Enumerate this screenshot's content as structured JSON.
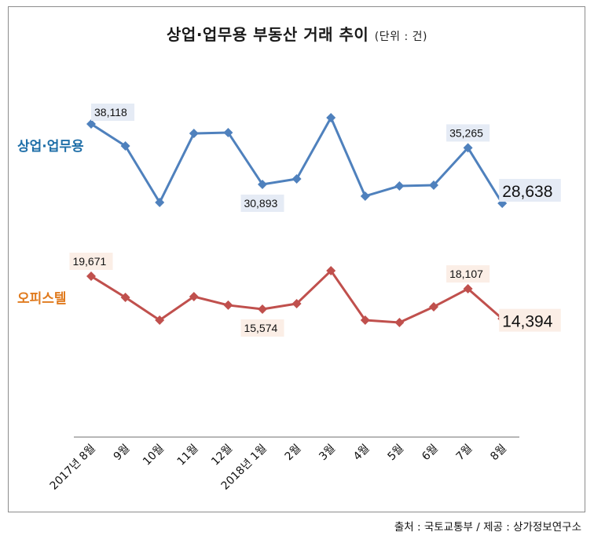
{
  "chart_data": {
    "type": "line",
    "title": "상업·업무용 부동산 거래 추이",
    "unit_label": "(단위 : 건)",
    "categories": [
      "2017년 8월",
      "9월",
      "10월",
      "11월",
      "12월",
      "2018년 1월",
      "2월",
      "3월",
      "4월",
      "5월",
      "6월",
      "7월",
      "8월"
    ],
    "series": [
      {
        "name": "상업·업무용",
        "color": "#4f81bd",
        "label_color": "#1f6fa8",
        "label_bg": "#e5ebf5",
        "values": [
          38118,
          35490,
          28740,
          36990,
          37090,
          30893,
          31550,
          38870,
          29490,
          30710,
          30800,
          35265,
          28638
        ],
        "data_labels": [
          {
            "index": 0,
            "text": "38,118",
            "pos": "above-right"
          },
          {
            "index": 5,
            "text": "30,893",
            "pos": "below"
          },
          {
            "index": 11,
            "text": "35,265",
            "pos": "above"
          },
          {
            "index": 12,
            "text": "28,638",
            "pos": "right",
            "emphasis": true
          }
        ],
        "y_range": [
          26000,
          40000
        ]
      },
      {
        "name": "오피스텔",
        "color": "#c0504d",
        "label_color": "#e07b1f",
        "label_bg": "#fbeee6",
        "values": [
          19671,
          17040,
          14210,
          17140,
          16070,
          15574,
          16260,
          20350,
          14210,
          13920,
          15870,
          18107,
          14394
        ],
        "data_labels": [
          {
            "index": 0,
            "text": "19,671",
            "pos": "above"
          },
          {
            "index": 5,
            "text": "15,574",
            "pos": "below"
          },
          {
            "index": 11,
            "text": "18,107",
            "pos": "above"
          },
          {
            "index": 12,
            "text": "14,394",
            "pos": "right",
            "emphasis": true
          }
        ],
        "y_range": [
          10000,
          22000
        ]
      }
    ],
    "xlabel": "",
    "ylabel": "",
    "grid": false,
    "legend": "inline-left"
  },
  "source": "출처 : 국토교통부 / 제공 : 상가정보연구소"
}
